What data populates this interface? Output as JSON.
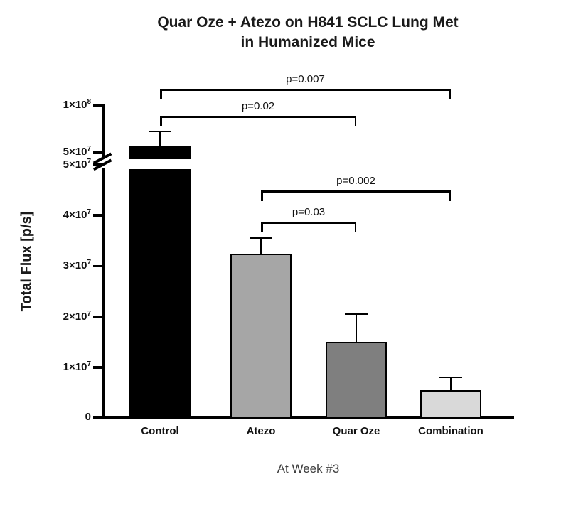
{
  "chart_data": {
    "type": "bar",
    "title": "Quar Oze + Atezo on H841 SCLC Lung Met in Humanized Mice",
    "title_lines": [
      "Quar Oze + Atezo on H841 SCLC Lung Met",
      "in Humanized Mice"
    ],
    "xlabel": "At Week #3",
    "ylabel": "Total Flux [p/s]",
    "categories": [
      "Control",
      "Atezo",
      "Quar Oze",
      "Combination"
    ],
    "values": [
      56000000,
      32500000,
      15000000,
      5500000
    ],
    "error_top": [
      72000000,
      35500000,
      20500000,
      8000000
    ],
    "bar_colors": [
      "#000000",
      "#a6a6a6",
      "#7f7f7f",
      "#d9d9d9"
    ],
    "ylim_lower": [
      0,
      50000000
    ],
    "ylim_upper": [
      50000000,
      100000000
    ],
    "axis_break": true,
    "grid": false,
    "legend": false,
    "y_ticks": [
      {
        "value": 0,
        "mantissa": "0",
        "exponent": "",
        "segment": "lower"
      },
      {
        "value": 10000000,
        "mantissa": "1×10",
        "exponent": "7",
        "segment": "lower"
      },
      {
        "value": 20000000,
        "mantissa": "2×10",
        "exponent": "7",
        "segment": "lower"
      },
      {
        "value": 30000000,
        "mantissa": "3×10",
        "exponent": "7",
        "segment": "lower"
      },
      {
        "value": 40000000,
        "mantissa": "4×10",
        "exponent": "7",
        "segment": "lower"
      },
      {
        "value": 50000000,
        "mantissa": "5×10",
        "exponent": "7",
        "segment": "lower"
      },
      {
        "value": 50000000,
        "mantissa": "5×10",
        "exponent": "7",
        "segment": "upper"
      },
      {
        "value": 100000000,
        "mantissa": "1×10",
        "exponent": "8",
        "segment": "upper"
      }
    ],
    "comparisons": [
      {
        "label": "p=0.007",
        "from": 0,
        "to": 3,
        "y": 125
      },
      {
        "label": "p=0.02",
        "from": 0,
        "to": 2,
        "y": 163
      },
      {
        "label": "p=0.002",
        "from": 1,
        "to": 3,
        "y": 268
      },
      {
        "label": "p=0.03",
        "from": 1,
        "to": 2,
        "y": 312
      }
    ]
  }
}
